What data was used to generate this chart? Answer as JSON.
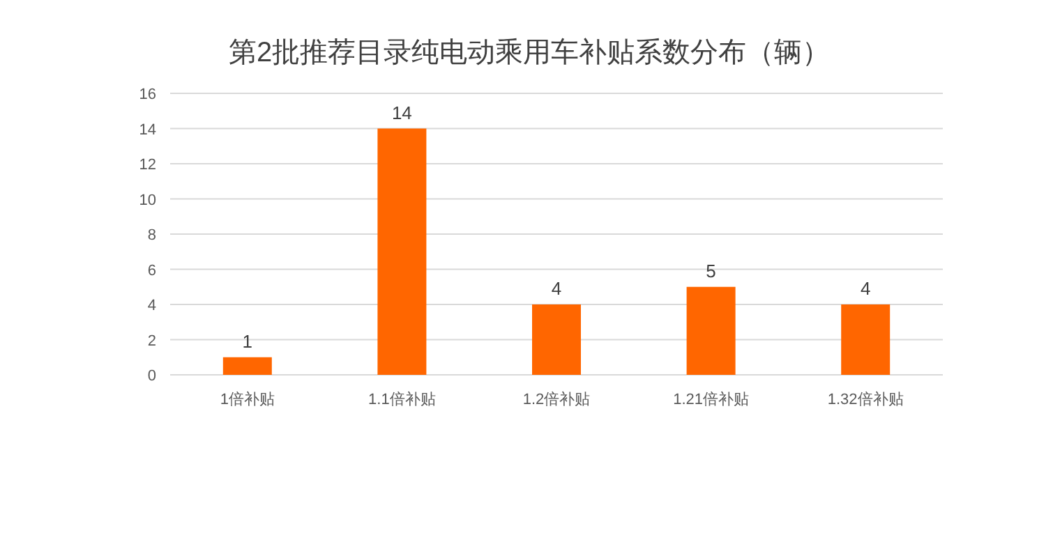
{
  "chart_data": {
    "type": "bar",
    "title": "第2批推荐目录纯电动乘用车补贴系数分布（辆）",
    "categories": [
      "1倍补贴",
      "1.1倍补贴",
      "1.2倍补贴",
      "1.21倍补贴",
      "1.32倍补贴"
    ],
    "values": [
      1,
      14,
      4,
      5,
      4
    ],
    "color": "#ff6600",
    "ylim": [
      0,
      16
    ],
    "yticks": [
      0,
      2,
      4,
      6,
      8,
      10,
      12,
      14,
      16
    ],
    "grid": "y",
    "data_labels": true
  }
}
